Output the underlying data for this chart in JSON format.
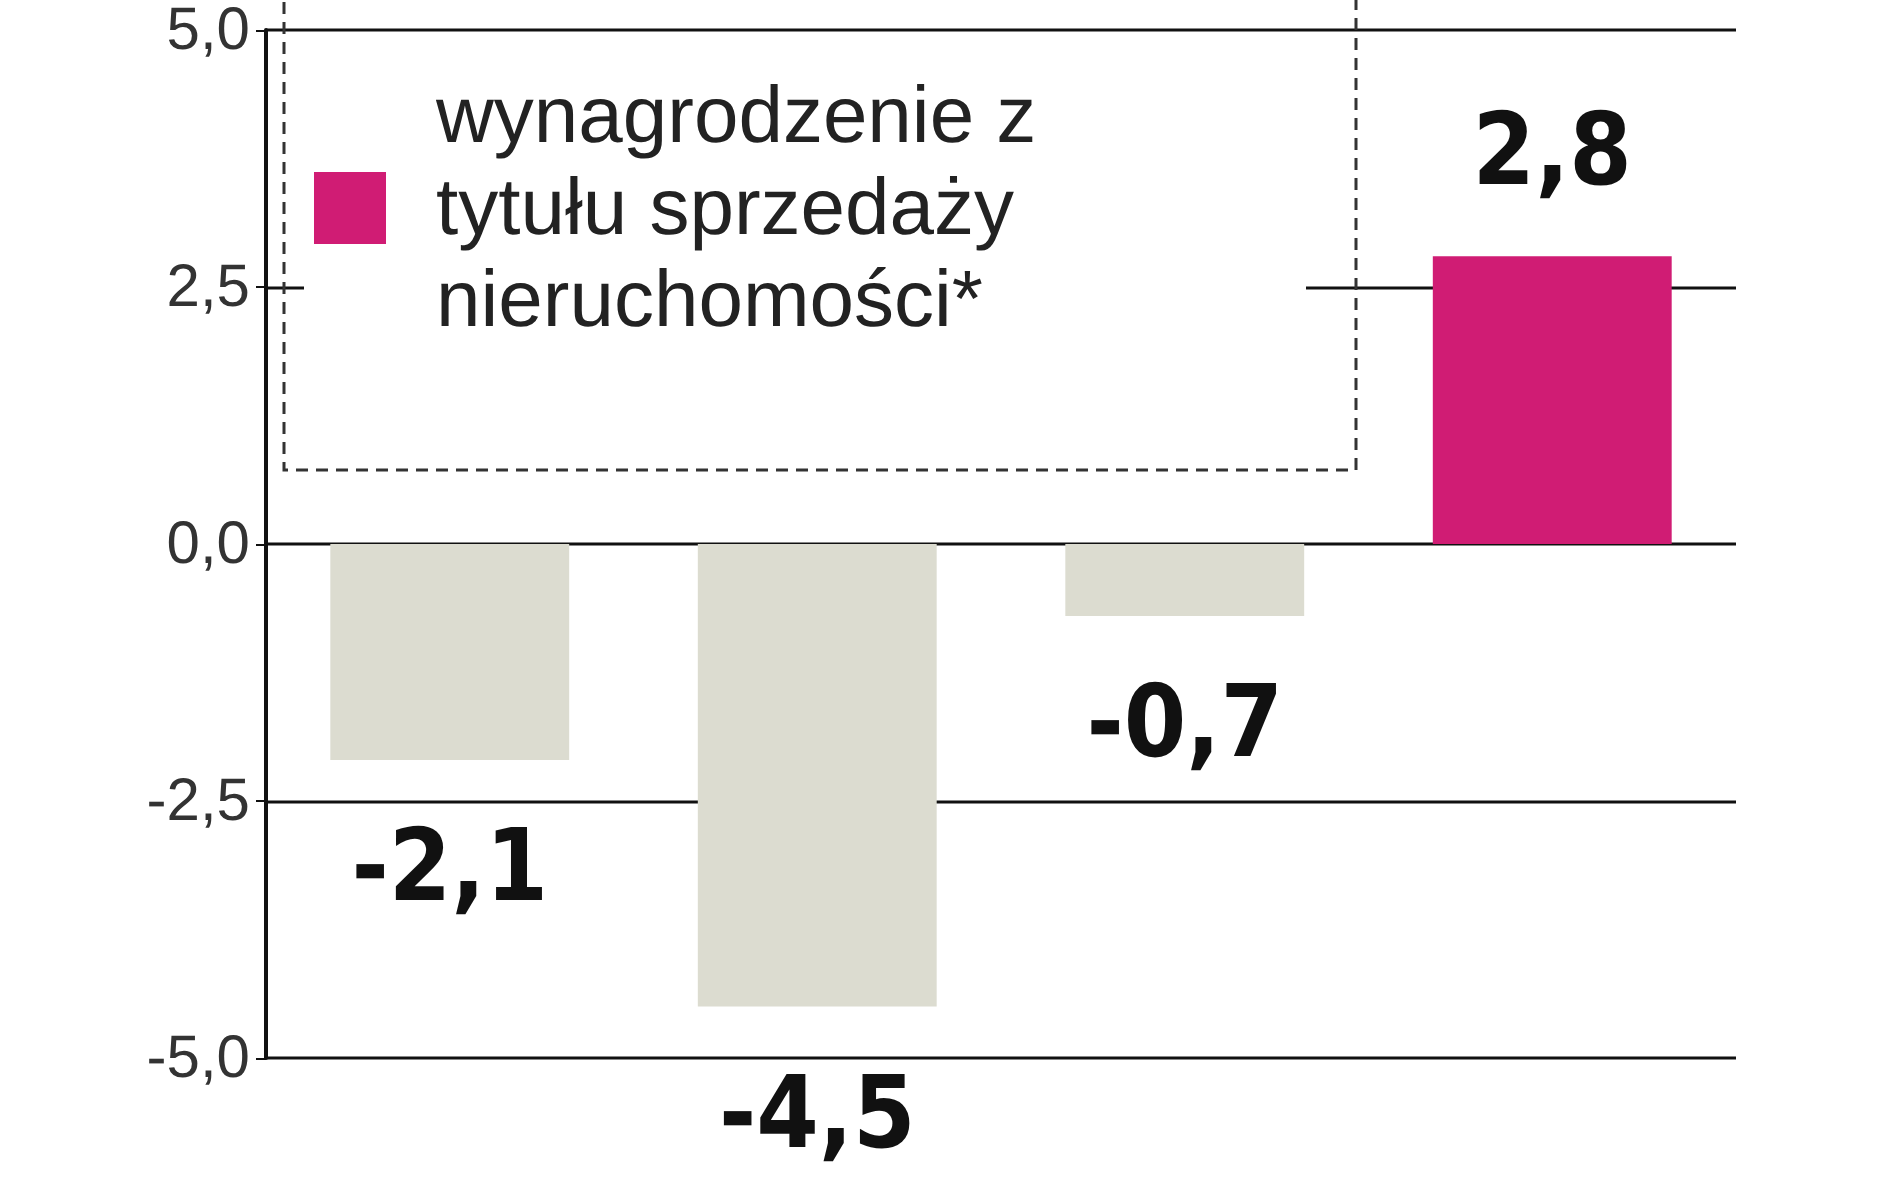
{
  "chart_data": {
    "type": "bar",
    "categories": [
      null,
      null,
      null,
      null
    ],
    "series": [
      {
        "color": "#dcdcd0",
        "values": [
          -2.1,
          -4.5,
          -0.7,
          null
        ],
        "value_labels": [
          "-2,1",
          "-4,5",
          "-0,7",
          null
        ]
      },
      {
        "name": "wynagrodzenie z tytułu sprzedaży nieruchomości*",
        "color": "#d01c74",
        "values": [
          null,
          null,
          null,
          2.8
        ],
        "value_labels": [
          null,
          null,
          null,
          "2,8"
        ]
      }
    ],
    "stacked": true,
    "ylim": [
      -5,
      5
    ],
    "yticks": [
      {
        "value": -5,
        "label": "-5,0"
      },
      {
        "value": -2.5,
        "label": "-2,5"
      },
      {
        "value": 0,
        "label": "0,0"
      },
      {
        "value": 2.5,
        "label": "2,5"
      },
      {
        "value": 5,
        "label": "5,0"
      }
    ],
    "grid": "y",
    "legend": "top left"
  }
}
